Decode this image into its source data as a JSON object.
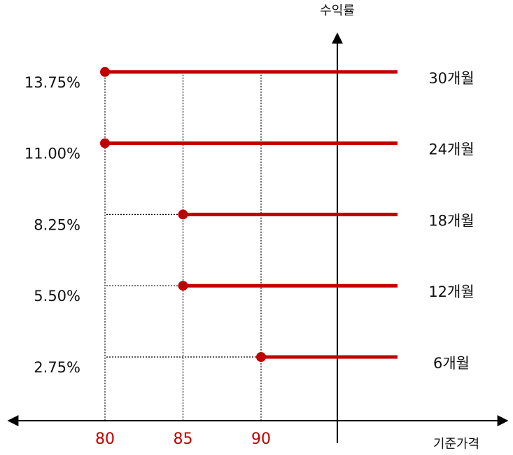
{
  "chart_data": {
    "type": "line",
    "title": "",
    "xlabel": "기준가격",
    "ylabel": "수익률",
    "x_ticks": [
      "80",
      "85",
      "90"
    ],
    "y_ticks": [
      "2.75%",
      "5.50%",
      "8.25%",
      "11.00%",
      "13.75%"
    ],
    "grid": "dotted guide lines",
    "series": [
      {
        "name": "30개월",
        "threshold": 80,
        "value_percent": 13.75,
        "y_label": "13.75%"
      },
      {
        "name": "24개월",
        "threshold": 80,
        "value_percent": 11.0,
        "y_label": "11.00%"
      },
      {
        "name": "18개월",
        "threshold": 85,
        "value_percent": 8.25,
        "y_label": "8.25%"
      },
      {
        "name": "12개월",
        "threshold": 85,
        "value_percent": 5.5,
        "y_label": "5.50%"
      },
      {
        "name": "6개월",
        "threshold": 90,
        "value_percent": 2.75,
        "y_label": "2.75%"
      }
    ],
    "colors": {
      "series": "#c00000",
      "tick_text": "#c00000",
      "axis": "#000000",
      "guide": "#000000"
    }
  }
}
